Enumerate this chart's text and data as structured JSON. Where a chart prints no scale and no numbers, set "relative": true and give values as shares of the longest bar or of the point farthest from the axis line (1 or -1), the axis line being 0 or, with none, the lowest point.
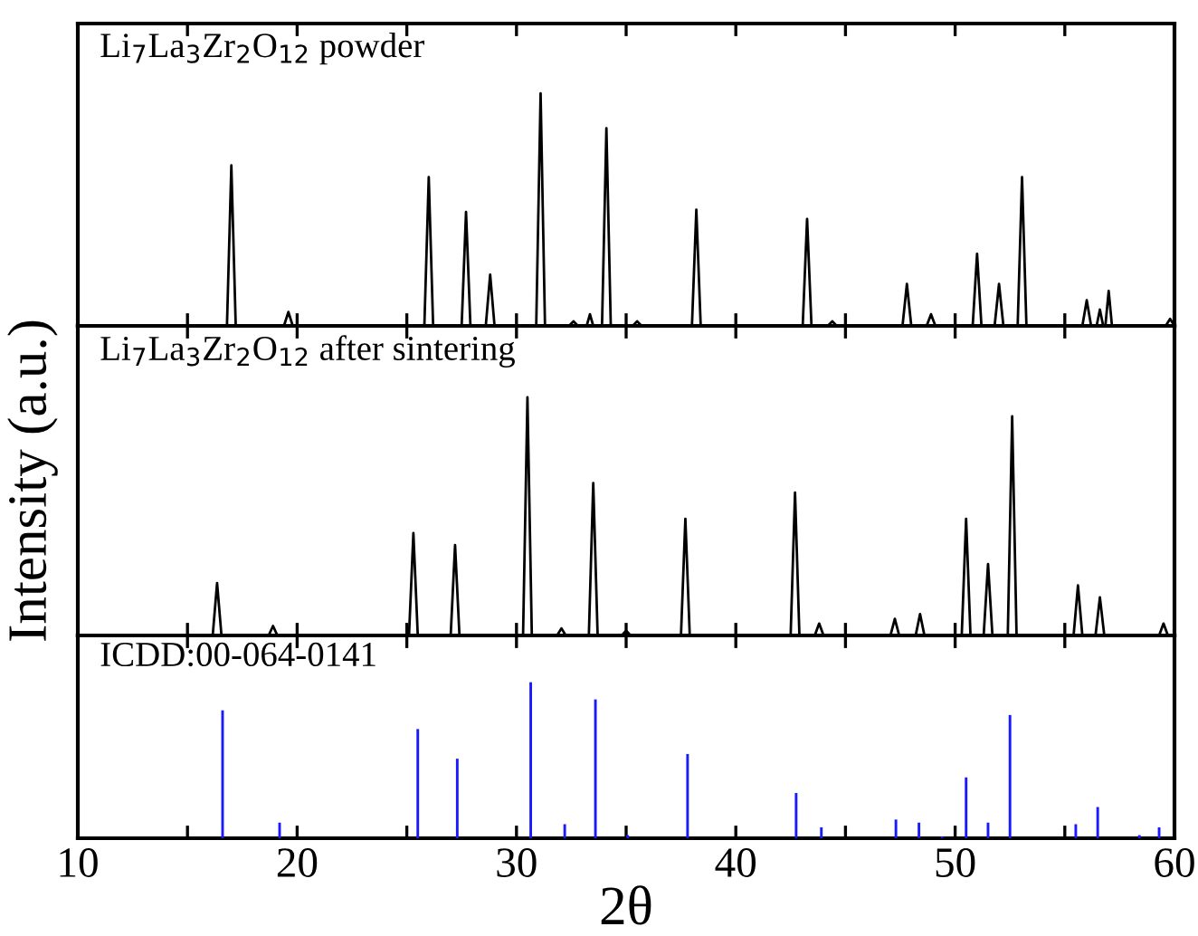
{
  "chart_data": [
    {
      "type": "line",
      "relative": true,
      "xlim": [
        10,
        60
      ],
      "tick_labels": false,
      "xticks": [
        10,
        {
          "value": 15,
          "label": null
        },
        20,
        {
          "value": 25,
          "label": null
        },
        30,
        {
          "value": 35,
          "label": null
        },
        40,
        {
          "value": 45,
          "label": null
        },
        50,
        {
          "value": 55,
          "label": null
        },
        60
      ],
      "annotations": [
        "Li$_{7}$La$_{3}$Zr$_{2}$O$_{12}$ powder"
      ],
      "series": [
        {
          "color": "#000000",
          "x": [
            10,
            16.8,
            17.0,
            17.2,
            19.4,
            19.6,
            19.8,
            25.8,
            26.0,
            26.2,
            27.5,
            27.7,
            27.9,
            28.6,
            28.8,
            29.0,
            30.9,
            31.1,
            31.3,
            32.4,
            32.6,
            32.8,
            33.2,
            33.35,
            33.5,
            33.9,
            34.1,
            34.3,
            35.3,
            35.5,
            35.7,
            38.0,
            38.2,
            38.4,
            43.05,
            43.25,
            43.45,
            44.2,
            44.4,
            44.6,
            47.6,
            47.8,
            48.0,
            48.7,
            48.9,
            49.1,
            50.8,
            51.0,
            51.2,
            51.8,
            52.0,
            52.2,
            52.85,
            53.05,
            53.25,
            55.8,
            56.0,
            56.2,
            56.45,
            56.6,
            56.75,
            56.85,
            57.0,
            57.15,
            59.6,
            59.8,
            60
          ],
          "values": [
            0,
            0,
            0.69,
            0,
            0,
            0.06,
            0,
            0,
            0.64,
            0,
            0,
            0.49,
            0,
            0,
            0.22,
            0,
            0,
            1,
            0,
            0,
            0.02,
            0,
            0,
            0.05,
            0,
            0,
            0.85,
            0,
            0,
            0.02,
            0,
            0,
            0.5,
            0,
            0,
            0.46,
            0,
            0,
            0.02,
            0,
            0,
            0.18,
            0,
            0,
            0.05,
            0,
            0,
            0.31,
            0,
            0,
            0.18,
            0,
            0,
            0.64,
            0,
            0,
            0.11,
            0,
            0,
            0.07,
            0,
            0,
            0.15,
            0,
            0,
            0.03,
            0
          ]
        }
      ]
    },
    {
      "type": "line",
      "relative": true,
      "xlim": [
        10,
        60
      ],
      "tick_labels": false,
      "ylabel": "Intensity (a.u.)",
      "xticks": [
        10,
        {
          "value": 15,
          "label": null
        },
        20,
        {
          "value": 25,
          "label": null
        },
        30,
        {
          "value": 35,
          "label": null
        },
        40,
        {
          "value": 45,
          "label": null
        },
        50,
        {
          "value": 55,
          "label": null
        },
        60
      ],
      "annotations": [
        "Li$_{7}$La$_{3}$Zr$_{2}$O$_{12}$ after sintering"
      ],
      "series": [
        {
          "color": "#000000",
          "x": [
            10,
            16.15,
            16.35,
            16.55,
            18.7,
            18.9,
            19.1,
            25.1,
            25.3,
            25.5,
            27.0,
            27.2,
            27.4,
            30.3,
            30.5,
            30.7,
            31.85,
            32.05,
            32.25,
            33.3,
            33.5,
            33.7,
            34.8,
            35.0,
            35.2,
            37.5,
            37.7,
            37.9,
            42.5,
            42.7,
            42.9,
            43.6,
            43.8,
            44.0,
            47.05,
            47.25,
            47.45,
            48.2,
            48.4,
            48.6,
            50.3,
            50.5,
            50.7,
            51.3,
            51.5,
            51.7,
            52.4,
            52.6,
            52.8,
            55.4,
            55.6,
            55.8,
            56.4,
            56.6,
            56.8,
            59.3,
            59.5,
            59.7,
            60
          ],
          "values": [
            0,
            0,
            0.22,
            0,
            0,
            0.04,
            0,
            0,
            0.43,
            0,
            0,
            0.38,
            0,
            0,
            1,
            0,
            0,
            0.03,
            0,
            0,
            0.64,
            0,
            0,
            0.02,
            0,
            0,
            0.49,
            0,
            0,
            0.6,
            0,
            0,
            0.05,
            0,
            0,
            0.07,
            0,
            0,
            0.09,
            0,
            0,
            0.49,
            0,
            0,
            0.3,
            0,
            0,
            0.92,
            0,
            0,
            0.21,
            0,
            0,
            0.16,
            0,
            0,
            0.05,
            0,
            0
          ]
        }
      ]
    },
    {
      "type": "bar",
      "relative": true,
      "xlim": [
        10,
        60
      ],
      "tick_labels": "x",
      "xlabel": "2θ",
      "xticks": [
        10,
        {
          "value": 15,
          "label": null
        },
        20,
        {
          "value": 25,
          "label": null
        },
        30,
        {
          "value": 35,
          "label": null
        },
        40,
        {
          "value": 45,
          "label": null
        },
        50,
        {
          "value": 55,
          "label": null
        },
        60
      ],
      "annotations": [
        "ICDD:00-064-0141"
      ],
      "series": [
        {
          "color": "#1a1aff",
          "x": [
            16.6,
            19.2,
            25.5,
            27.3,
            30.65,
            32.2,
            33.6,
            35.07,
            37.8,
            42.75,
            43.9,
            47.3,
            48.35,
            49.4,
            50.5,
            51.5,
            52.5,
            55.5,
            56.5,
            58.4,
            59.3
          ],
          "values": [
            0.82,
            0.1,
            0.7,
            0.51,
            1,
            0.09,
            0.89,
            0.02,
            0.54,
            0.29,
            0.07,
            0.12,
            0.1,
            0.01,
            0.39,
            0.1,
            0.79,
            0.09,
            0.2,
            0.02,
            0.07
          ]
        }
      ]
    }
  ]
}
